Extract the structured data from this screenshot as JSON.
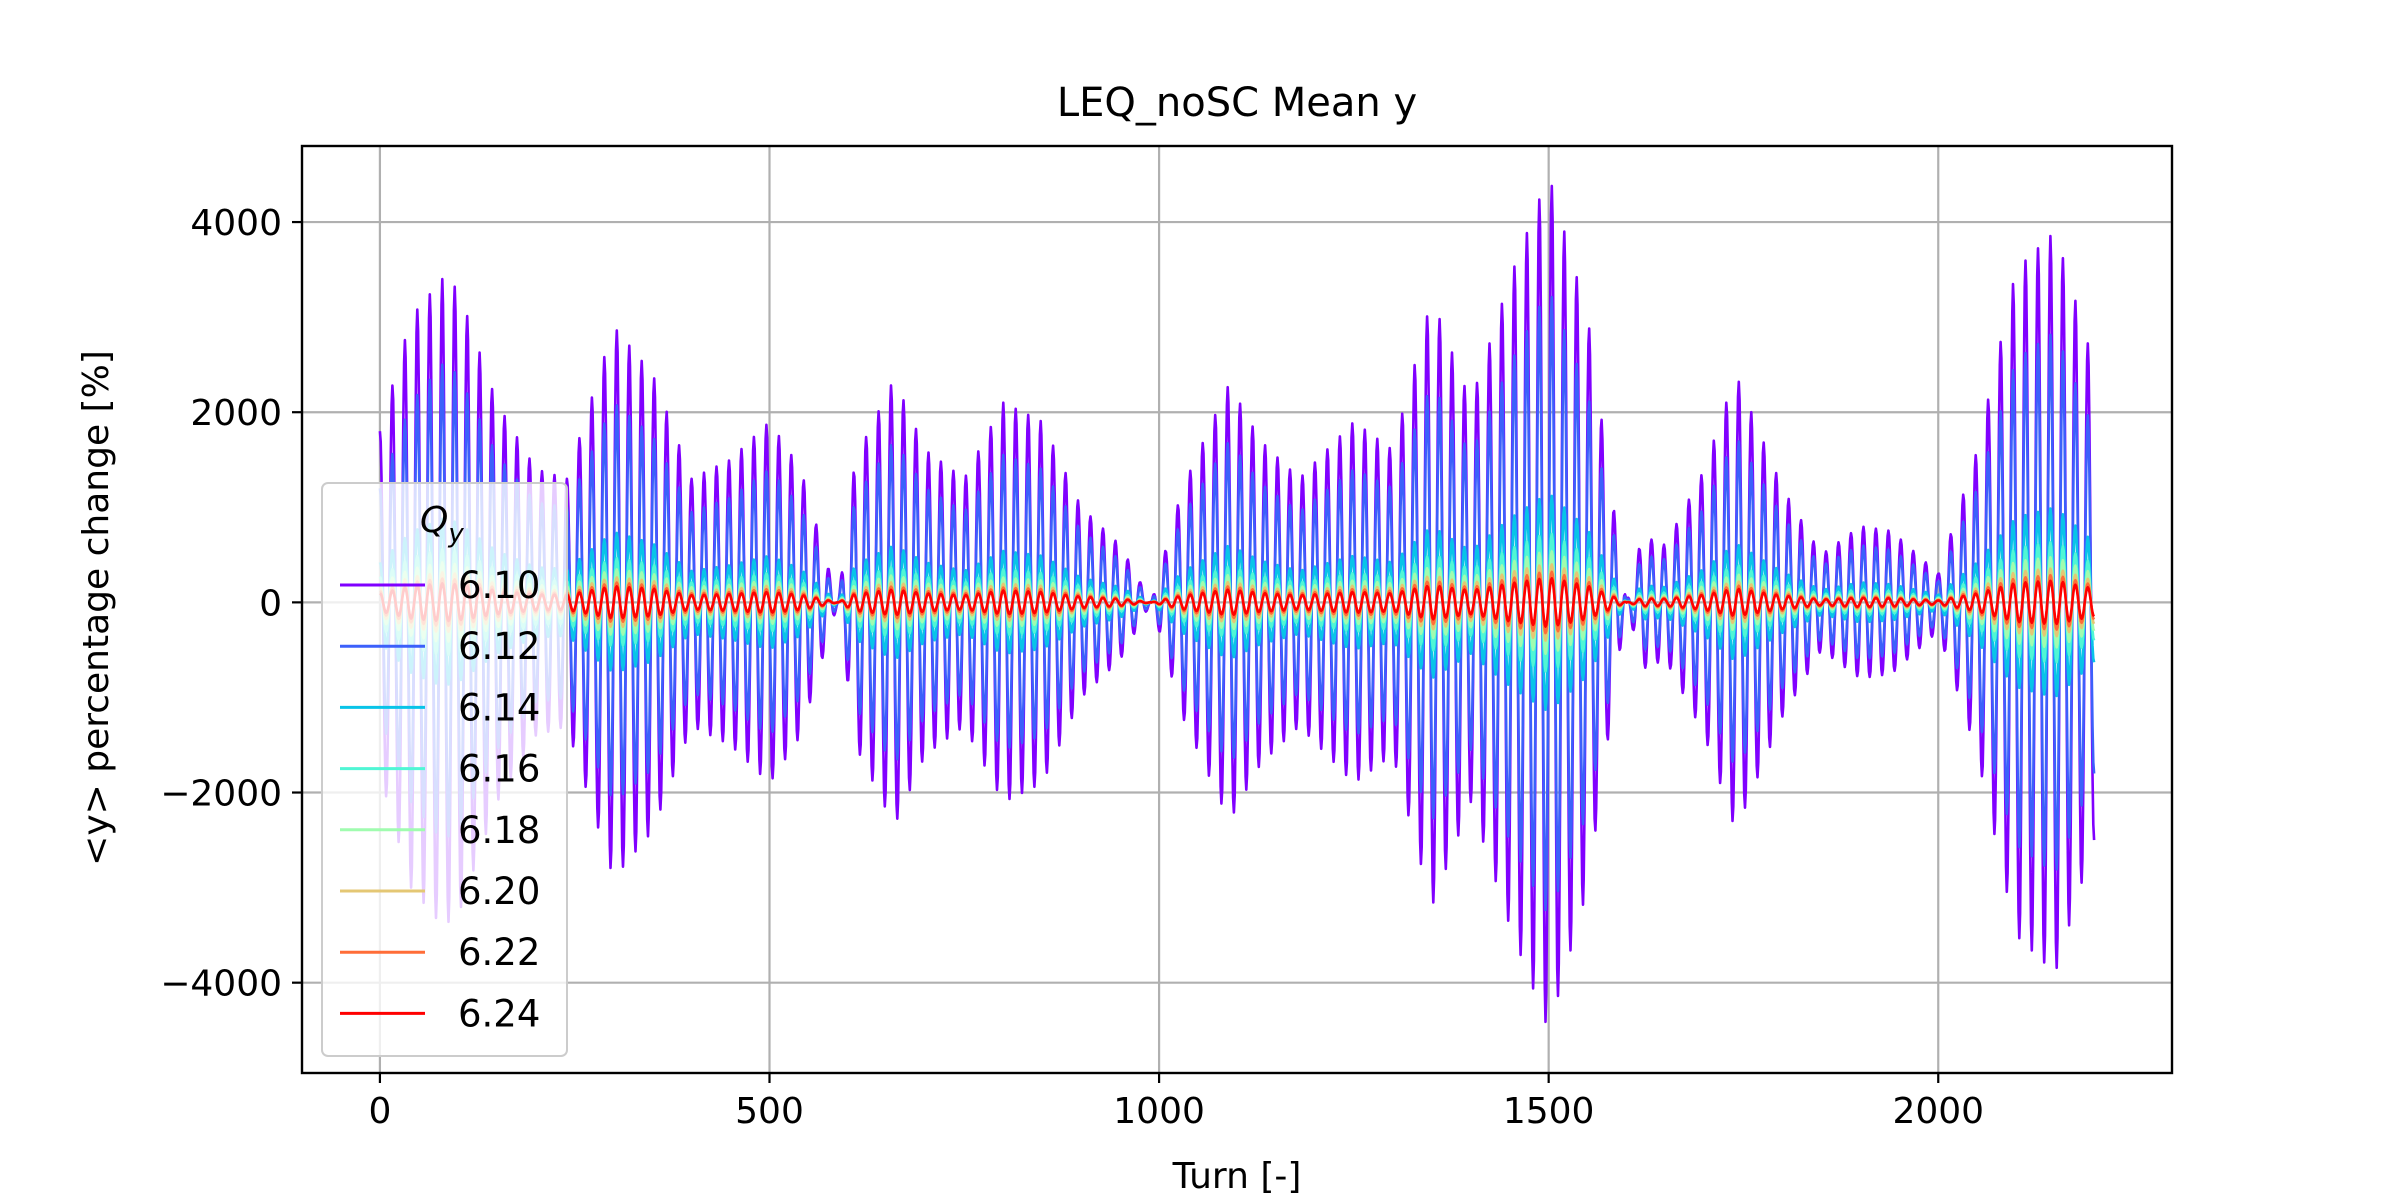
{
  "chart_data": {
    "type": "line",
    "title": "LEQ_noSC Mean y",
    "xlabel": "Turn [-]",
    "ylabel": "<y> percentage change [%]",
    "xlim": [
      -100,
      2300
    ],
    "ylim": [
      -4950,
      4800
    ],
    "xticks": [
      0,
      500,
      1000,
      1500,
      2000
    ],
    "yticks": [
      4000,
      2000,
      0,
      -2000,
      -4000
    ],
    "xtick_labels": [
      "0",
      "500",
      "1000",
      "1500",
      "2000"
    ],
    "ytick_labels": [
      "4000",
      "2000",
      "0",
      "−2000",
      "−4000"
    ],
    "grid": true,
    "legend": {
      "title": "Q",
      "title_sub": "y",
      "placement": "lower-left"
    },
    "oscillation_period_turns": 16,
    "x_range": [
      0,
      2200
    ],
    "envelope_x": [
      0,
      40,
      80,
      100,
      150,
      200,
      240,
      300,
      350,
      400,
      450,
      500,
      540,
      588,
      610,
      660,
      700,
      750,
      800,
      850,
      900,
      950,
      990,
      1030,
      1090,
      1130,
      1180,
      1250,
      1300,
      1350,
      1400,
      1450,
      1500,
      1550,
      1600,
      1620,
      1650,
      1700,
      1740,
      1800,
      1850,
      1900,
      1940,
      2000,
      2050,
      2100,
      2150,
      2200
    ],
    "series": [
      {
        "name": "6.10",
        "color": "#8000ff",
        "envelope": [
          1800,
          3000,
          3400,
          3300,
          2100,
          1400,
          1300,
          2900,
          2400,
          1300,
          1500,
          1900,
          1400,
          0,
          1500,
          2350,
          1600,
          1300,
          2100,
          1900,
          1000,
          600,
          0,
          1200,
          2300,
          1700,
          1300,
          1900,
          1600,
          3200,
          2100,
          3400,
          4500,
          3000,
          0,
          700,
          600,
          1400,
          2400,
          1200,
          500,
          800,
          750,
          300,
          1600,
          3500,
          3900,
          2500
        ]
      },
      {
        "name": "6.12",
        "color": "#3c60fb",
        "envelope": [
          1200,
          2100,
          2500,
          2400,
          1550,
          1050,
          1000,
          2100,
          1750,
          950,
          1100,
          1400,
          1000,
          0,
          1100,
          1700,
          1200,
          950,
          1550,
          1400,
          750,
          450,
          0,
          900,
          1700,
          1250,
          950,
          1400,
          1200,
          2300,
          1550,
          2500,
          3300,
          2200,
          0,
          500,
          450,
          1000,
          1750,
          900,
          380,
          600,
          550,
          220,
          1200,
          2550,
          2850,
          1800
        ]
      },
      {
        "name": "6.14",
        "color": "#09c4e8",
        "envelope": [
          420,
          740,
          880,
          840,
          540,
          370,
          350,
          740,
          620,
          330,
          390,
          490,
          350,
          0,
          390,
          600,
          420,
          330,
          540,
          490,
          260,
          160,
          0,
          320,
          600,
          440,
          330,
          490,
          420,
          800,
          540,
          880,
          1150,
          770,
          0,
          180,
          160,
          350,
          620,
          320,
          130,
          210,
          190,
          80,
          420,
          890,
          1000,
          630
        ]
      },
      {
        "name": "6.16",
        "color": "#50f6d5",
        "envelope": [
          270,
          470,
          560,
          540,
          350,
          240,
          225,
          470,
          400,
          210,
          250,
          310,
          225,
          0,
          250,
          380,
          270,
          210,
          350,
          310,
          170,
          100,
          0,
          200,
          380,
          280,
          210,
          310,
          270,
          510,
          350,
          560,
          740,
          490,
          0,
          115,
          100,
          225,
          400,
          200,
          85,
          135,
          120,
          50,
          270,
          570,
          640,
          400
        ]
      },
      {
        "name": "6.18",
        "color": "#a0fcaf",
        "envelope": [
          200,
          350,
          420,
          400,
          260,
          180,
          170,
          350,
          300,
          160,
          185,
          230,
          170,
          0,
          185,
          290,
          200,
          160,
          260,
          230,
          125,
          75,
          0,
          150,
          290,
          210,
          160,
          230,
          200,
          380,
          260,
          420,
          550,
          365,
          0,
          85,
          75,
          170,
          300,
          150,
          65,
          100,
          90,
          40,
          200,
          430,
          480,
          300
        ]
      },
      {
        "name": "6.20",
        "color": "#e4c774",
        "envelope": [
          150,
          265,
          315,
          300,
          195,
          135,
          125,
          265,
          225,
          120,
          140,
          175,
          125,
          0,
          140,
          215,
          150,
          120,
          195,
          175,
          95,
          55,
          0,
          115,
          215,
          160,
          120,
          175,
          150,
          285,
          195,
          315,
          410,
          275,
          0,
          65,
          55,
          125,
          225,
          115,
          48,
          75,
          68,
          30,
          150,
          320,
          360,
          225
        ]
      },
      {
        "name": "6.22",
        "color": "#ff6d38",
        "envelope": [
          120,
          210,
          250,
          240,
          155,
          105,
          100,
          210,
          180,
          95,
          110,
          140,
          100,
          0,
          110,
          170,
          120,
          95,
          155,
          140,
          75,
          45,
          0,
          90,
          170,
          125,
          95,
          140,
          120,
          230,
          155,
          250,
          330,
          220,
          0,
          50,
          45,
          100,
          180,
          90,
          38,
          60,
          54,
          24,
          120,
          255,
          290,
          180
        ]
      },
      {
        "name": "6.24",
        "color": "#ff0000",
        "envelope": [
          95,
          170,
          200,
          190,
          125,
          85,
          80,
          170,
          145,
          75,
          90,
          110,
          80,
          0,
          90,
          135,
          95,
          75,
          125,
          110,
          60,
          36,
          0,
          72,
          135,
          100,
          75,
          110,
          95,
          180,
          125,
          200,
          260,
          175,
          0,
          40,
          36,
          80,
          145,
          72,
          30,
          48,
          43,
          19,
          95,
          205,
          230,
          145
        ]
      }
    ]
  }
}
